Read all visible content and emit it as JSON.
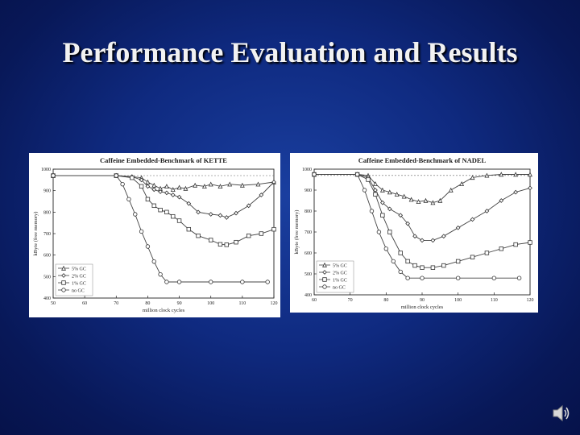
{
  "slide": {
    "title": "Performance Evaluation and Results",
    "speaker_icon": "speaker-icon"
  },
  "colors": {
    "background": "#0f2a80",
    "title": "#f2f2f2",
    "plot_line": "#555555",
    "frame": "#222222"
  },
  "chart_data": [
    {
      "type": "line",
      "title": "Caffeine Embedded-Benchmark of KETTE",
      "xlabel": "million clock cycles",
      "ylabel": "kByte (free memory)",
      "xlim": [
        50,
        120
      ],
      "ylim": [
        400,
        1000
      ],
      "xticks": [
        "50",
        "60",
        "70",
        "80",
        "90",
        "100",
        "110",
        "120"
      ],
      "yticks": [
        "400",
        "500",
        "600",
        "700",
        "800",
        "900",
        "1000"
      ],
      "legend": "bottom-left",
      "grid": false,
      "series": [
        {
          "name": "5% GC",
          "marker": "triangle",
          "x": [
            50,
            70,
            75,
            78,
            80,
            82,
            84,
            86,
            88,
            90,
            92,
            95,
            98,
            100,
            103,
            106,
            110,
            115,
            120
          ],
          "y": [
            970,
            970,
            965,
            960,
            940,
            925,
            910,
            920,
            905,
            915,
            910,
            925,
            920,
            930,
            920,
            930,
            925,
            930,
            940
          ]
        },
        {
          "name": "2% GC",
          "marker": "diamond",
          "x": [
            50,
            70,
            75,
            78,
            80,
            82,
            84,
            86,
            88,
            90,
            93,
            96,
            100,
            103,
            105,
            108,
            112,
            116,
            120
          ],
          "y": [
            970,
            970,
            965,
            950,
            920,
            905,
            895,
            890,
            880,
            870,
            840,
            800,
            790,
            785,
            775,
            795,
            830,
            880,
            940
          ]
        },
        {
          "name": "1% GC",
          "marker": "square",
          "x": [
            50,
            70,
            75,
            78,
            80,
            82,
            84,
            86,
            88,
            90,
            93,
            96,
            100,
            103,
            105,
            108,
            112,
            116,
            120
          ],
          "y": [
            970,
            970,
            960,
            920,
            860,
            830,
            810,
            800,
            780,
            760,
            720,
            690,
            670,
            650,
            648,
            660,
            690,
            700,
            720
          ]
        },
        {
          "name": "no GC",
          "marker": "circle",
          "x": [
            50,
            70,
            72,
            74,
            76,
            78,
            80,
            82,
            84,
            86,
            90,
            100,
            110,
            118
          ],
          "y": [
            970,
            970,
            930,
            860,
            790,
            710,
            640,
            570,
            510,
            475,
            475,
            475,
            475,
            475
          ]
        }
      ]
    },
    {
      "type": "line",
      "title": "Caffeine Embedded-Benchmark of NADEL",
      "xlabel": "million clock cycles",
      "ylabel": "kByte (free memory)",
      "xlim": [
        60,
        120
      ],
      "ylim": [
        400,
        1000
      ],
      "xticks": [
        "60",
        "70",
        "80",
        "90",
        "100",
        "110",
        "120"
      ],
      "yticks": [
        "400",
        "500",
        "600",
        "700",
        "800",
        "900",
        "1000"
      ],
      "legend": "bottom-left",
      "grid": false,
      "series": [
        {
          "name": "5% GC",
          "marker": "triangle",
          "x": [
            60,
            72,
            75,
            77,
            79,
            81,
            83,
            85,
            87,
            89,
            91,
            93,
            95,
            98,
            101,
            104,
            108,
            112,
            116,
            120
          ],
          "y": [
            975,
            975,
            970,
            930,
            900,
            890,
            880,
            870,
            855,
            845,
            850,
            840,
            850,
            900,
            930,
            960,
            970,
            975,
            975,
            975
          ]
        },
        {
          "name": "2% GC",
          "marker": "diamond",
          "x": [
            60,
            72,
            75,
            77,
            79,
            81,
            84,
            86,
            88,
            90,
            93,
            96,
            100,
            104,
            108,
            112,
            116,
            120
          ],
          "y": [
            975,
            975,
            960,
            900,
            840,
            810,
            780,
            740,
            680,
            660,
            660,
            680,
            720,
            760,
            800,
            850,
            890,
            910
          ]
        },
        {
          "name": "1% GC",
          "marker": "square",
          "x": [
            60,
            72,
            75,
            77,
            79,
            81,
            84,
            86,
            88,
            90,
            93,
            96,
            100,
            104,
            108,
            112,
            116,
            120
          ],
          "y": [
            975,
            975,
            950,
            880,
            780,
            700,
            600,
            560,
            540,
            530,
            530,
            540,
            560,
            580,
            600,
            620,
            640,
            650
          ]
        },
        {
          "name": "no GC",
          "marker": "circle",
          "x": [
            60,
            72,
            74,
            76,
            78,
            80,
            82,
            84,
            86,
            90,
            100,
            110,
            117
          ],
          "y": [
            975,
            975,
            900,
            800,
            700,
            620,
            560,
            510,
            480,
            480,
            480,
            480,
            480
          ]
        }
      ]
    }
  ]
}
